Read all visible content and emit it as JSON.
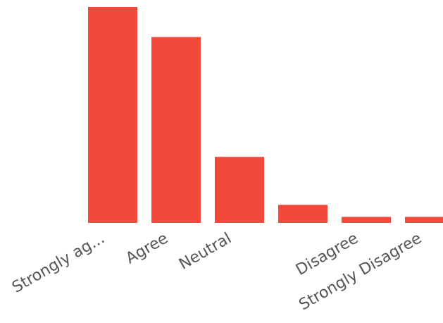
{
  "chart_data": {
    "type": "bar",
    "categories": [
      "Strongly ag...",
      "Agree",
      "Neutral",
      "",
      "Disagree",
      "Strongly Disagree"
    ],
    "values": [
      72,
      62,
      22,
      6,
      2,
      2
    ],
    "ylim": [
      0,
      72
    ],
    "grid": false,
    "legend": "none",
    "bar_color": "#f2493a"
  }
}
